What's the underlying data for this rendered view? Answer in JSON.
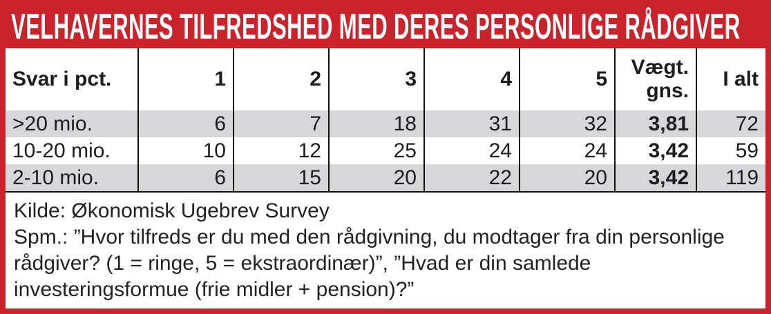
{
  "colors": {
    "accent_red": "#c9242b",
    "row_gray": "#d7d7d9",
    "line_black": "#111111"
  },
  "chart_data": {
    "type": "table",
    "title": "VELHAVERNES TILFREDSHED MED DERES PERSONLIGE RÅDGIVER",
    "columns": [
      "Svar i pct.",
      "1",
      "2",
      "3",
      "4",
      "5",
      "Vægt. gns.",
      "I alt"
    ],
    "rows": [
      [
        ">20 mio.",
        "6",
        "7",
        "18",
        "31",
        "32",
        "3,81",
        "72"
      ],
      [
        "10-20 mio.",
        "10",
        "12",
        "25",
        "24",
        "24",
        "3,42",
        "59"
      ],
      [
        "2-10 mio.",
        "6",
        "15",
        "20",
        "22",
        "20",
        "3,42",
        "119"
      ]
    ],
    "notes": {
      "unit": "Svar i pct.",
      "scale": "1 = ringe, 5 = ekstraordinær"
    }
  },
  "footer": {
    "kilde": "Kilde: Økonomisk Ugebrev Survey",
    "spm": "Spm.: ”Hvor tilfreds er du med den rådgivning, du modtager fra din personlige rådgiver? (1 = ringe, 5 = ekstraordinær)”, ”Hvad er din samlede investeringsformue (frie midler + pension)?”"
  }
}
